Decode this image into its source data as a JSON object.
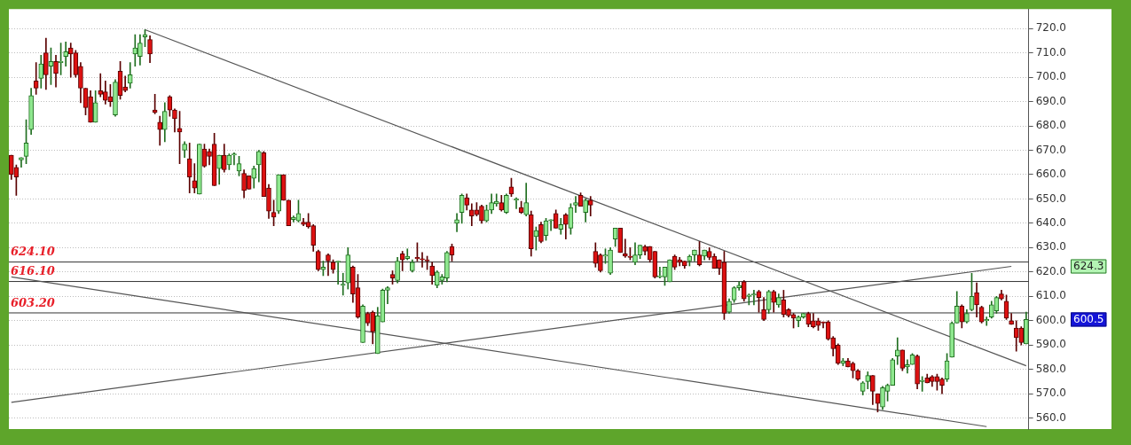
{
  "chart_data": {
    "type": "candlestick",
    "categories": [
      null,
      null,
      null,
      null,
      null,
      null,
      null,
      null,
      null,
      null,
      null,
      null,
      null,
      null,
      null,
      null,
      null,
      null,
      null,
      null,
      null,
      null,
      null,
      null,
      null,
      null,
      null,
      null,
      null,
      null,
      null,
      null,
      null,
      null,
      null,
      null,
      null,
      null,
      null,
      null,
      null,
      null,
      null,
      null,
      null,
      null,
      null,
      null,
      null,
      null,
      null,
      null,
      null,
      null,
      null,
      null,
      null,
      null,
      null,
      null,
      null,
      null,
      null,
      null,
      null,
      null,
      null,
      null,
      null,
      null,
      null,
      null,
      null,
      null,
      null,
      null,
      null,
      null,
      null,
      null,
      null,
      null,
      null,
      null,
      null,
      null,
      null,
      null,
      null,
      null,
      null,
      null,
      null,
      null,
      null,
      null,
      null,
      null,
      null,
      null,
      null,
      null,
      null,
      null,
      null,
      null,
      null,
      null,
      null,
      null,
      null,
      null,
      null,
      null,
      null,
      null,
      null,
      null,
      null,
      null,
      null,
      null,
      null,
      null,
      null,
      null,
      null,
      null,
      null,
      null,
      null,
      null,
      null,
      null,
      null,
      null,
      null,
      null,
      null,
      null,
      null,
      null,
      null,
      null,
      null,
      null,
      null,
      null,
      null,
      null,
      null,
      null,
      null,
      null,
      null,
      null,
      null,
      null,
      null,
      null,
      null,
      null,
      null,
      null,
      null,
      null,
      null,
      null,
      null,
      null,
      null,
      null,
      null,
      null,
      null,
      null,
      null,
      null,
      null,
      null,
      null,
      null,
      null,
      null,
      null,
      null,
      null,
      null,
      null,
      null,
      null,
      null,
      null,
      null,
      null,
      null,
      null,
      null,
      null,
      null,
      null,
      null,
      null,
      null,
      null,
      null
    ],
    "ohlc": [
      [
        668,
        668,
        658,
        660
      ],
      [
        663,
        664,
        651.5,
        659
      ],
      [
        666,
        667,
        663,
        667
      ],
      [
        667.5,
        682.5,
        664.5,
        673
      ],
      [
        678.5,
        695.5,
        676.5,
        692.5
      ],
      [
        698.5,
        706,
        693,
        695.5
      ],
      [
        699.5,
        709,
        695.5,
        705.5
      ],
      [
        710,
        716,
        695,
        701
      ],
      [
        704.5,
        712,
        697,
        706.5
      ],
      [
        706.5,
        709,
        696,
        701.5
      ],
      [
        706,
        714,
        701,
        706.5
      ],
      [
        708.5,
        714.5,
        704.5,
        710.5
      ],
      [
        712,
        714,
        700,
        709.5
      ],
      [
        710,
        711,
        700,
        701
      ],
      [
        704.5,
        706,
        689.5,
        695.5
      ],
      [
        695.5,
        695.5,
        684.5,
        687.5
      ],
      [
        692,
        694.5,
        681.5,
        681.5
      ],
      [
        681.5,
        694.5,
        681.5,
        689.5
      ],
      [
        694.5,
        701.5,
        692,
        693
      ],
      [
        694,
        698.5,
        689,
        690.5
      ],
      [
        692,
        697,
        688,
        690
      ],
      [
        684.5,
        699,
        684,
        698
      ],
      [
        702.5,
        706.5,
        691,
        692.5
      ],
      [
        696,
        700.5,
        694,
        694.5
      ],
      [
        697.5,
        706,
        695.5,
        701
      ],
      [
        709.5,
        717.5,
        704.5,
        712
      ],
      [
        708.5,
        717.5,
        705,
        714
      ],
      [
        716.5,
        719.5,
        712.5,
        717.5
      ],
      [
        715.5,
        717,
        706,
        709.5
      ],
      [
        686.5,
        693,
        685,
        685.5
      ],
      [
        681.5,
        684,
        672,
        678.5
      ],
      [
        678.5,
        689.5,
        673.5,
        686
      ],
      [
        692,
        692.5,
        684,
        686.5
      ],
      [
        686.5,
        687,
        677.5,
        683
      ],
      [
        679,
        686,
        664.5,
        677.5
      ],
      [
        670,
        673.5,
        667,
        672.5
      ],
      [
        666.5,
        673,
        652.5,
        659
      ],
      [
        657.5,
        664.5,
        652.5,
        654.5
      ],
      [
        652,
        672.5,
        652,
        672.5
      ],
      [
        670.5,
        672.5,
        663,
        663.5
      ],
      [
        669.5,
        670.5,
        664,
        667.5
      ],
      [
        672.5,
        677,
        655.5,
        655.5
      ],
      [
        662.5,
        668,
        656,
        668
      ],
      [
        668,
        672.5,
        661,
        662
      ],
      [
        664,
        668.5,
        662,
        668
      ],
      [
        668,
        669,
        664,
        668.5
      ],
      [
        661.5,
        667.5,
        659.5,
        664.5
      ],
      [
        660.5,
        662,
        650.5,
        653.5
      ],
      [
        659.5,
        659.5,
        654,
        654
      ],
      [
        658.5,
        663.5,
        654.5,
        662.5
      ],
      [
        664,
        670,
        657,
        669.5
      ],
      [
        669,
        669.5,
        651,
        651
      ],
      [
        654.5,
        656,
        642,
        645
      ],
      [
        644.5,
        649.5,
        639,
        642.5
      ],
      [
        645,
        660,
        644,
        660
      ],
      [
        660,
        660,
        649.5,
        649.5
      ],
      [
        649.5,
        649.5,
        639,
        639
      ],
      [
        641.5,
        643,
        640.5,
        642.5
      ],
      [
        641,
        649.5,
        640.5,
        644
      ],
      [
        640.5,
        642,
        639,
        639.5
      ],
      [
        640.5,
        644,
        638,
        638.5
      ],
      [
        639,
        639.5,
        628.5,
        631
      ],
      [
        628.5,
        629,
        620.5,
        621
      ],
      [
        621,
        624.5,
        618.5,
        622
      ],
      [
        627,
        627.5,
        618.5,
        624.5
      ],
      [
        624,
        625,
        619.5,
        621
      ],
      [
        624,
        624.5,
        615,
        624.5
      ],
      [
        614.5,
        619.5,
        610.5,
        615
      ],
      [
        615.5,
        630,
        613,
        627
      ],
      [
        622,
        622.5,
        607.5,
        611
      ],
      [
        613.5,
        619,
        601,
        601.5
      ],
      [
        591,
        606.5,
        591,
        606
      ],
      [
        603,
        603.5,
        598,
        599
      ],
      [
        603.5,
        604,
        590.5,
        595.5
      ],
      [
        586.5,
        605.5,
        586.5,
        602
      ],
      [
        599.5,
        613,
        599.5,
        612.5
      ],
      [
        612.5,
        614,
        607,
        613.5
      ],
      [
        619,
        620.5,
        615,
        617.5
      ],
      [
        616.5,
        626,
        615.5,
        624.5
      ],
      [
        627.5,
        628.5,
        620.5,
        625
      ],
      [
        625.5,
        629.5,
        625,
        626.5
      ],
      [
        620.5,
        625,
        620,
        624
      ],
      [
        626,
        632,
        624.5,
        625.5
      ],
      [
        625.5,
        628,
        622,
        625
      ],
      [
        625,
        626.5,
        621,
        624.5
      ],
      [
        622.5,
        624,
        615,
        618.5
      ],
      [
        614.5,
        620.5,
        613.5,
        620
      ],
      [
        616.5,
        619,
        615,
        618
      ],
      [
        617.5,
        628.5,
        616,
        628
      ],
      [
        630.5,
        631.5,
        624.5,
        627
      ],
      [
        640,
        644,
        636.5,
        641.5
      ],
      [
        644.5,
        652,
        640,
        651.5
      ],
      [
        650.5,
        652,
        645.5,
        647.5
      ],
      [
        645.5,
        648,
        639,
        643
      ],
      [
        645.5,
        648.5,
        643,
        643.5
      ],
      [
        647,
        647.5,
        640,
        641
      ],
      [
        641,
        647.5,
        640.5,
        645.5
      ],
      [
        645.5,
        652,
        644,
        648.5
      ],
      [
        648,
        652,
        647,
        649
      ],
      [
        648.5,
        651.5,
        645,
        645.5
      ],
      [
        644.5,
        652,
        644,
        651.5
      ],
      [
        655,
        658.5,
        651,
        652
      ],
      [
        649.5,
        650.5,
        646,
        650
      ],
      [
        646.5,
        649,
        644,
        644.5
      ],
      [
        643.5,
        656.5,
        643,
        648.5
      ],
      [
        643.5,
        645,
        626.5,
        629.5
      ],
      [
        634.5,
        638.5,
        629,
        637
      ],
      [
        639.5,
        640.5,
        632,
        632.5
      ],
      [
        635,
        642,
        633,
        641
      ],
      [
        641,
        641.5,
        637,
        641.5
      ],
      [
        644,
        645.5,
        638,
        638
      ],
      [
        637.5,
        642,
        635.5,
        639.5
      ],
      [
        643.5,
        644,
        633.5,
        639.5
      ],
      [
        638,
        648,
        635.5,
        646.5
      ],
      [
        647.5,
        651,
        644.5,
        648.5
      ],
      [
        651.5,
        652.5,
        647,
        647
      ],
      [
        644.5,
        650,
        640.5,
        649.5
      ],
      [
        649.5,
        651,
        643,
        647.5
      ],
      [
        628.5,
        632,
        622,
        623.5
      ],
      [
        627,
        627.5,
        620,
        620.5
      ],
      [
        626.5,
        629.5,
        623.5,
        627
      ],
      [
        619.5,
        630,
        619,
        629
      ],
      [
        633.5,
        638,
        630.5,
        638
      ],
      [
        638,
        638,
        628,
        628
      ],
      [
        627.5,
        633.5,
        626,
        626.5
      ],
      [
        626.5,
        630,
        625,
        626
      ],
      [
        624,
        632,
        623,
        627
      ],
      [
        627,
        631,
        625.5,
        631
      ],
      [
        630.5,
        631,
        627,
        628.5
      ],
      [
        630.5,
        630.5,
        624,
        625
      ],
      [
        628.5,
        628.5,
        617.5,
        618
      ],
      [
        618,
        622,
        617.5,
        618.5
      ],
      [
        618,
        622,
        614.5,
        622
      ],
      [
        616,
        625,
        616,
        625
      ],
      [
        626.5,
        627,
        621,
        622
      ],
      [
        625,
        626,
        622.5,
        624
      ],
      [
        624.5,
        624.5,
        621.5,
        622.5
      ],
      [
        624.5,
        627,
        622.5,
        626.5
      ],
      [
        627,
        629,
        624.5,
        629
      ],
      [
        627,
        632.5,
        622.5,
        623
      ],
      [
        626.5,
        629,
        625,
        629
      ],
      [
        628.5,
        630,
        625,
        626
      ],
      [
        626.5,
        627.5,
        621.5,
        621.5
      ],
      [
        625,
        625,
        619,
        621.5
      ],
      [
        624,
        628.5,
        600.5,
        603
      ],
      [
        603.5,
        609,
        603,
        608
      ],
      [
        608.5,
        614,
        607.5,
        613.5
      ],
      [
        613.5,
        616,
        612.5,
        614.5
      ],
      [
        616,
        616.5,
        608,
        609
      ],
      [
        610,
        611,
        606.5,
        610.5
      ],
      [
        610.5,
        612.5,
        606.5,
        611
      ],
      [
        612,
        612.5,
        603.5,
        609.5
      ],
      [
        604.5,
        609.5,
        600,
        600.5
      ],
      [
        604.5,
        612.5,
        603,
        612
      ],
      [
        612,
        612.5,
        603.5,
        607.5
      ],
      [
        606.5,
        611,
        605.5,
        609.5
      ],
      [
        608.5,
        612.5,
        601.5,
        602.5
      ],
      [
        604.5,
        605,
        601.5,
        602
      ],
      [
        602.5,
        603,
        597,
        601
      ],
      [
        600,
        602,
        597.5,
        601.5
      ],
      [
        601.5,
        603,
        601,
        603
      ],
      [
        603,
        603.5,
        597.5,
        598.5
      ],
      [
        600,
        603,
        597,
        597.5
      ],
      [
        600,
        601,
        596,
        598
      ],
      [
        599.5,
        599.5,
        597,
        599
      ],
      [
        599.5,
        600,
        592,
        592.5
      ],
      [
        593,
        593.5,
        585.5,
        588.5
      ],
      [
        590,
        590.5,
        582,
        582.5
      ],
      [
        582.5,
        584.5,
        581.5,
        583.5
      ],
      [
        583.5,
        584.5,
        581,
        581
      ],
      [
        582.5,
        583,
        576.5,
        579.5
      ],
      [
        579.5,
        580,
        575.5,
        576
      ],
      [
        571,
        575,
        569.5,
        574.5
      ],
      [
        575,
        579,
        572,
        577.5
      ],
      [
        577.5,
        577.5,
        565.5,
        571
      ],
      [
        570,
        570,
        562.5,
        566
      ],
      [
        564.5,
        573,
        563.5,
        572.5
      ],
      [
        571,
        574,
        567,
        573.5
      ],
      [
        573.5,
        584.5,
        573.5,
        584
      ],
      [
        585.5,
        593,
        582,
        588
      ],
      [
        588,
        588,
        579.5,
        580.5
      ],
      [
        581,
        584,
        578.5,
        582
      ],
      [
        582,
        586.5,
        582,
        586
      ],
      [
        585.5,
        586,
        572,
        574
      ],
      [
        575,
        577,
        571,
        575.5
      ],
      [
        576.5,
        578,
        574.5,
        574.5
      ],
      [
        577,
        577.5,
        573,
        575
      ],
      [
        577,
        578,
        571.5,
        575
      ],
      [
        576,
        576.5,
        570,
        573.5
      ],
      [
        576,
        586.5,
        575,
        583.5
      ],
      [
        585,
        599.5,
        585,
        599
      ],
      [
        599,
        612,
        599,
        606
      ],
      [
        606,
        606.5,
        597,
        599.5
      ],
      [
        599.5,
        604.5,
        599,
        603
      ],
      [
        604.5,
        619.5,
        604,
        610
      ],
      [
        611.5,
        615.5,
        601.5,
        606.5
      ],
      [
        605.5,
        606,
        599,
        599.5
      ],
      [
        600,
        601.5,
        598,
        600.5
      ],
      [
        601.5,
        608,
        601,
        606.5
      ],
      [
        604,
        610,
        603,
        609.5
      ],
      [
        611,
        612.5,
        608.5,
        609
      ],
      [
        608,
        610.5,
        600.5,
        601
      ],
      [
        600,
        603,
        598.5,
        598.5
      ],
      [
        597,
        600,
        587.5,
        593
      ],
      [
        597,
        597.5,
        590,
        591
      ],
      [
        590.5,
        603.5,
        590.5,
        600.5
      ]
    ],
    "series": [
      {
        "type": "line",
        "color": "#555555",
        "values": [
          null,
          null,
          null,
          null,
          null,
          null,
          null,
          null,
          null,
          null,
          null,
          null,
          null,
          null,
          null,
          null,
          null,
          null,
          null,
          null,
          null,
          null,
          null,
          null,
          null,
          null,
          null,
          719.5,
          null,
          null,
          null,
          null,
          null,
          null,
          null,
          null,
          null,
          null,
          null,
          null,
          null,
          null,
          null,
          null,
          null,
          null,
          null,
          null,
          null,
          null,
          null,
          null,
          null,
          null,
          null,
          null,
          null,
          null,
          null,
          null,
          null,
          null,
          null,
          null,
          null,
          null,
          null,
          null,
          null,
          null,
          null,
          null,
          null,
          null,
          null,
          null,
          null,
          null,
          null,
          null,
          null,
          null,
          null,
          null,
          null,
          null,
          null,
          null,
          null,
          null,
          null,
          null,
          null,
          null,
          null,
          null,
          null,
          null,
          null,
          null,
          null,
          null,
          null,
          null,
          null,
          null,
          null,
          null,
          null,
          null,
          null,
          null,
          null,
          null,
          null,
          null,
          null,
          null,
          null,
          null,
          null,
          null,
          null,
          null,
          null,
          null,
          null,
          null,
          null,
          null,
          null,
          null,
          null,
          null,
          null,
          null,
          null,
          null,
          null,
          null,
          null,
          null,
          null,
          null,
          null,
          null,
          null,
          null,
          null,
          null,
          null,
          null,
          null,
          null,
          null,
          null,
          null,
          null,
          null,
          null,
          null,
          null,
          null,
          null,
          null,
          null,
          null,
          null,
          null,
          null,
          null,
          null,
          null,
          null,
          null,
          null,
          null,
          null,
          null,
          null,
          null,
          null,
          null,
          null,
          null,
          null,
          null,
          null,
          null,
          null,
          null,
          null,
          null,
          null,
          null,
          null,
          null,
          null,
          null,
          null,
          null,
          null,
          null,
          null,
          null,
          581.5
        ]
      },
      {
        "type": "line",
        "color": "#555555",
        "values": [
          566.5,
          null,
          null,
          null,
          null,
          null,
          null,
          null,
          null,
          null,
          null,
          null,
          null,
          null,
          null,
          null,
          null,
          null,
          null,
          null,
          null,
          null,
          null,
          null,
          null,
          null,
          null,
          null,
          null,
          null,
          null,
          null,
          null,
          null,
          null,
          null,
          null,
          null,
          null,
          null,
          null,
          null,
          null,
          null,
          null,
          null,
          null,
          null,
          null,
          null,
          null,
          null,
          null,
          null,
          null,
          null,
          null,
          null,
          null,
          null,
          null,
          null,
          null,
          null,
          null,
          null,
          null,
          null,
          null,
          null,
          null,
          null,
          null,
          null,
          null,
          null,
          null,
          null,
          null,
          null,
          null,
          null,
          null,
          null,
          null,
          null,
          null,
          null,
          null,
          null,
          null,
          null,
          null,
          null,
          null,
          null,
          null,
          null,
          null,
          null,
          null,
          null,
          null,
          null,
          null,
          null,
          null,
          null,
          null,
          null,
          null,
          null,
          null,
          null,
          null,
          null,
          null,
          null,
          null,
          null,
          null,
          null,
          null,
          null,
          null,
          null,
          null,
          null,
          null,
          null,
          null,
          null,
          null,
          null,
          null,
          null,
          null,
          null,
          null,
          null,
          null,
          null,
          null,
          null,
          null,
          null,
          null,
          null,
          null,
          null,
          null,
          null,
          null,
          null,
          null,
          null,
          null,
          null,
          null,
          null,
          null,
          null,
          null,
          null,
          null,
          null,
          null,
          null,
          null,
          null,
          null,
          null,
          null,
          null,
          null,
          null,
          null,
          null,
          null,
          null,
          null,
          null,
          null,
          null,
          null,
          null,
          null,
          null,
          null,
          null,
          null,
          null,
          null,
          null,
          null,
          null,
          null,
          null,
          null,
          null,
          null,
          null,
          622.3,
          null,
          null,
          null
        ]
      },
      {
        "type": "line",
        "color": "#555555",
        "values": [
          618,
          null,
          null,
          null,
          null,
          null,
          null,
          null,
          null,
          null,
          null,
          null,
          null,
          null,
          null,
          null,
          null,
          null,
          null,
          null,
          null,
          null,
          null,
          null,
          null,
          null,
          null,
          null,
          null,
          null,
          null,
          null,
          null,
          null,
          null,
          null,
          null,
          null,
          null,
          null,
          null,
          null,
          null,
          null,
          null,
          null,
          null,
          null,
          null,
          null,
          null,
          null,
          null,
          null,
          null,
          null,
          null,
          null,
          null,
          null,
          null,
          null,
          null,
          null,
          null,
          null,
          null,
          null,
          null,
          null,
          null,
          null,
          null,
          null,
          null,
          null,
          null,
          null,
          null,
          null,
          null,
          null,
          null,
          null,
          null,
          null,
          null,
          null,
          null,
          null,
          null,
          null,
          null,
          null,
          null,
          null,
          null,
          null,
          null,
          null,
          null,
          null,
          null,
          null,
          null,
          null,
          null,
          null,
          null,
          null,
          null,
          null,
          null,
          null,
          null,
          null,
          null,
          null,
          null,
          null,
          null,
          null,
          null,
          null,
          null,
          null,
          null,
          null,
          null,
          null,
          null,
          null,
          null,
          null,
          null,
          null,
          null,
          null,
          null,
          null,
          null,
          null,
          null,
          null,
          null,
          null,
          null,
          null,
          null,
          null,
          null,
          null,
          null,
          null,
          null,
          null,
          null,
          null,
          null,
          null,
          null,
          null,
          null,
          null,
          null,
          null,
          null,
          null,
          null,
          null,
          null,
          null,
          null,
          null,
          null,
          null,
          null,
          null,
          null,
          null,
          null,
          null,
          null,
          null,
          null,
          null,
          null,
          null,
          null,
          null,
          null,
          null,
          null,
          null,
          null,
          null,
          null,
          556.5,
          null,
          null,
          null,
          null,
          null,
          null,
          null,
          null
        ]
      }
    ],
    "ref_lines": [
      {
        "axis": "y",
        "value": 624.1,
        "label": "624.10",
        "color": "#333333"
      },
      {
        "axis": "y",
        "value": 616.1,
        "label": "616.10",
        "color": "#333333"
      },
      {
        "axis": "y",
        "value": 603.2,
        "label": "603.20",
        "color": "#333333"
      }
    ],
    "annotations": [
      "624.3",
      "600.5"
    ],
    "ylim": [
      555.5,
      728
    ],
    "yticks": [
      {
        "value": 560,
        "label": "560.0"
      },
      {
        "value": 570,
        "label": "570.0"
      },
      {
        "value": 580,
        "label": "580.0"
      },
      {
        "value": 590,
        "label": "590.0"
      },
      {
        "value": 600,
        "label": "600.0"
      },
      {
        "value": 610,
        "label": "610.0"
      },
      {
        "value": 620,
        "label": "620.0"
      },
      {
        "value": 630,
        "label": "630.0"
      },
      {
        "value": 640,
        "label": "640.0"
      },
      {
        "value": 650,
        "label": "650.0"
      },
      {
        "value": 660,
        "label": "660.0"
      },
      {
        "value": 670,
        "label": "670.0"
      },
      {
        "value": 680,
        "label": "680.0"
      },
      {
        "value": 690,
        "label": "690.0"
      },
      {
        "value": 700,
        "label": "700.0"
      },
      {
        "value": 710,
        "label": "710.0"
      },
      {
        "value": 720,
        "label": "720.0"
      }
    ],
    "grid": "y",
    "legend": false,
    "tick_labels": "y"
  }
}
